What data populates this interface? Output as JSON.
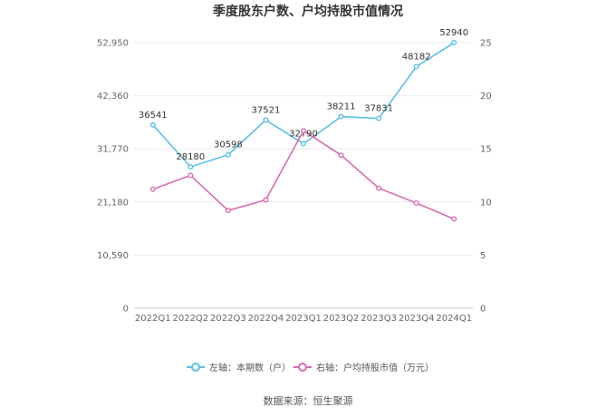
{
  "chart_data": {
    "type": "line",
    "title": "季度股东户数、户均持股市值情况",
    "categories": [
      "2022Q1",
      "2022Q2",
      "2022Q3",
      "2022Q4",
      "2023Q1",
      "2023Q2",
      "2023Q3",
      "2023Q4",
      "2024Q1"
    ],
    "left_axis": {
      "ticks": [
        "0",
        "10,590",
        "21,180",
        "31,770",
        "42,360",
        "52,950"
      ],
      "ylim": [
        0,
        52950
      ]
    },
    "right_axis": {
      "ticks": [
        "0",
        "5",
        "10",
        "15",
        "20",
        "25"
      ],
      "ylim": [
        0,
        25
      ]
    },
    "series": [
      {
        "name": "左轴：本期数（户）",
        "axis": "left",
        "color": "#5bc0eb",
        "values": [
          36541,
          28180,
          30598,
          37521,
          32790,
          38211,
          37831,
          48182,
          52940
        ],
        "labels": [
          "36541",
          "28180",
          "30598",
          "37521",
          "32790",
          "38211",
          "37831",
          "48182",
          "52940"
        ]
      },
      {
        "name": "右轴：户均持股市值（万元）",
        "axis": "right",
        "color": "#d96bb0",
        "values": [
          11.2,
          12.5,
          9.2,
          10.2,
          16.7,
          14.4,
          11.3,
          9.9,
          8.4
        ]
      }
    ],
    "grid": true,
    "legend_position": "bottom"
  },
  "source": "数据来源：恒生聚源"
}
